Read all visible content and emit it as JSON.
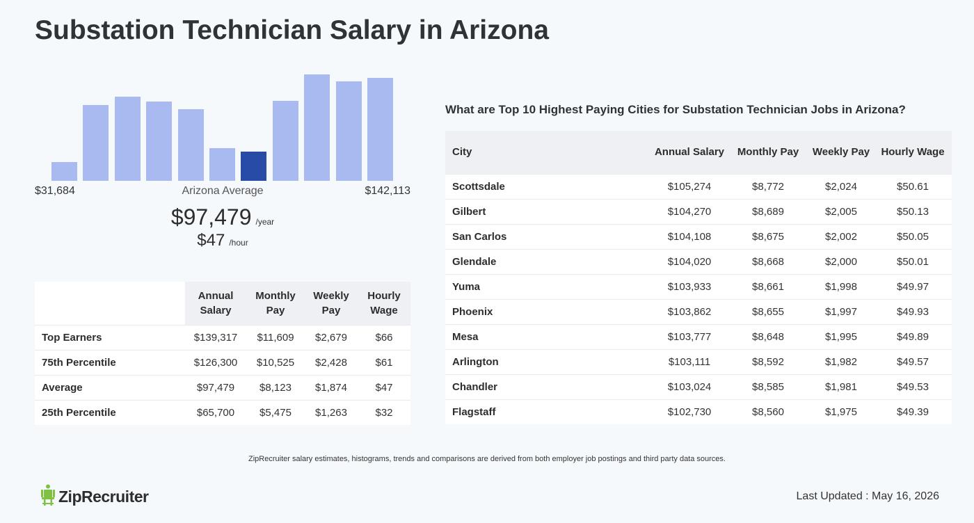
{
  "page_title": "Substation Technician Salary in Arizona",
  "chart_data": {
    "type": "bar",
    "values": [
      27,
      108,
      120,
      113,
      102,
      47,
      42,
      114,
      152,
      142,
      147
    ],
    "highlight_index": 6,
    "colors": {
      "bar": "#a8baf0",
      "highlight": "#274ba6"
    },
    "range_min_label": "$31,684",
    "range_max_label": "$142,113",
    "center_label": "Arizona Average"
  },
  "average": {
    "yearly": "$97,479",
    "yearly_unit": "/year",
    "hourly": "$47",
    "hourly_unit": "/hour"
  },
  "percentile_table": {
    "headers": [
      "Annual Salary",
      "Monthly Pay",
      "Weekly Pay",
      "Hourly Wage"
    ],
    "rows": [
      {
        "label": "Top Earners",
        "values": [
          "$139,317",
          "$11,609",
          "$2,679",
          "$66"
        ]
      },
      {
        "label": "75th Percentile",
        "values": [
          "$126,300",
          "$10,525",
          "$2,428",
          "$61"
        ]
      },
      {
        "label": "Average",
        "values": [
          "$97,479",
          "$8,123",
          "$1,874",
          "$47"
        ]
      },
      {
        "label": "25th Percentile",
        "values": [
          "$65,700",
          "$5,475",
          "$1,263",
          "$32"
        ]
      }
    ]
  },
  "cities": {
    "title": "What are Top 10 Highest Paying Cities for Substation Technician Jobs in Arizona?",
    "headers": [
      "City",
      "Annual Salary",
      "Monthly Pay",
      "Weekly Pay",
      "Hourly Wage"
    ],
    "rows": [
      {
        "city": "Scottsdale",
        "values": [
          "$105,274",
          "$8,772",
          "$2,024",
          "$50.61"
        ]
      },
      {
        "city": "Gilbert",
        "values": [
          "$104,270",
          "$8,689",
          "$2,005",
          "$50.13"
        ]
      },
      {
        "city": "San Carlos",
        "values": [
          "$104,108",
          "$8,675",
          "$2,002",
          "$50.05"
        ]
      },
      {
        "city": "Glendale",
        "values": [
          "$104,020",
          "$8,668",
          "$2,000",
          "$50.01"
        ]
      },
      {
        "city": "Yuma",
        "values": [
          "$103,933",
          "$8,661",
          "$1,998",
          "$49.97"
        ]
      },
      {
        "city": "Phoenix",
        "values": [
          "$103,862",
          "$8,655",
          "$1,997",
          "$49.93"
        ]
      },
      {
        "city": "Mesa",
        "values": [
          "$103,777",
          "$8,648",
          "$1,995",
          "$49.89"
        ]
      },
      {
        "city": "Arlington",
        "values": [
          "$103,111",
          "$8,592",
          "$1,982",
          "$49.57"
        ]
      },
      {
        "city": "Chandler",
        "values": [
          "$103,024",
          "$8,585",
          "$1,981",
          "$49.53"
        ]
      },
      {
        "city": "Flagstaff",
        "values": [
          "$102,730",
          "$8,560",
          "$1,975",
          "$49.39"
        ]
      }
    ]
  },
  "footnote": "ZipRecruiter salary estimates, histograms, trends and comparisons are derived from both employer job postings and third party data sources.",
  "logo_text": "ZipRecruiter",
  "logo_icon": "ziprecruiter-chair-icon",
  "last_updated": "Last Updated : May 16, 2026"
}
